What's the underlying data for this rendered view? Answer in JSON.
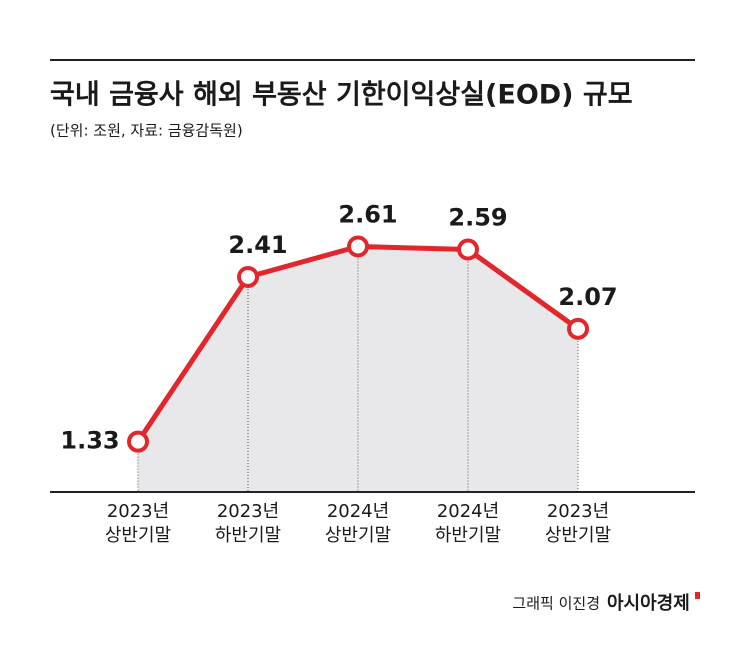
{
  "chart_data": {
    "type": "line",
    "title": "국내 금융사 해외 부동산 기한이익상실(EOD) 규모",
    "subtitle": "(단위: 조원, 자료: 금융감독원)",
    "categories": [
      [
        "2023년",
        "상반기말"
      ],
      [
        "2023년",
        "하반기말"
      ],
      [
        "2024년",
        "상반기말"
      ],
      [
        "2024년",
        "하반기말"
      ],
      [
        "2023년",
        "상반기말"
      ]
    ],
    "values": [
      1.33,
      2.41,
      2.61,
      2.59,
      2.07
    ],
    "color": "#e1262c",
    "area_color": "#e8e8ea",
    "ylim": [
      1,
      3
    ],
    "credit": "그래픽 이진경",
    "brand": "아시아경제"
  }
}
